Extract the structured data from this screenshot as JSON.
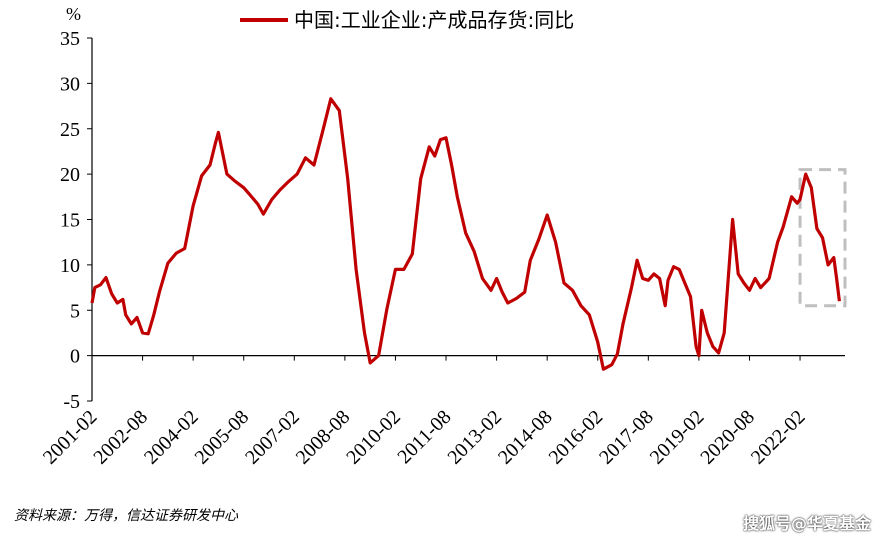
{
  "chart_data": {
    "type": "line",
    "ylabel_unit": "%",
    "ylim": [
      -5,
      35
    ],
    "yticks": [
      35,
      30,
      25,
      20,
      15,
      10,
      5,
      0,
      -5
    ],
    "xtick_labels": [
      "2001-02",
      "2002-08",
      "2004-02",
      "2005-08",
      "2007-02",
      "2008-08",
      "2010-02",
      "2011-08",
      "2013-02",
      "2014-08",
      "2016-02",
      "2017-08",
      "2019-02",
      "2020-08",
      "2022-02"
    ],
    "legend_position": "top",
    "series": [
      {
        "name": "中国:工业企业:产成品存货:同比",
        "color": "#c00000",
        "points": [
          [
            "2001-02",
            5.8
          ],
          [
            "2001-03",
            7.5
          ],
          [
            "2001-05",
            7.8
          ],
          [
            "2001-07",
            8.6
          ],
          [
            "2001-09",
            6.8
          ],
          [
            "2001-11",
            5.8
          ],
          [
            "2002-01",
            6.2
          ],
          [
            "2002-02",
            4.5
          ],
          [
            "2002-04",
            3.5
          ],
          [
            "2002-06",
            4.2
          ],
          [
            "2002-08",
            2.5
          ],
          [
            "2002-10",
            2.4
          ],
          [
            "2002-12",
            4.5
          ],
          [
            "2003-02",
            7.0
          ],
          [
            "2003-05",
            10.2
          ],
          [
            "2003-08",
            11.3
          ],
          [
            "2003-11",
            11.8
          ],
          [
            "2004-02",
            16.5
          ],
          [
            "2004-05",
            19.8
          ],
          [
            "2004-08",
            21.0
          ],
          [
            "2004-10",
            23.5
          ],
          [
            "2004-11",
            24.6
          ],
          [
            "2005-02",
            20.0
          ],
          [
            "2005-05",
            19.2
          ],
          [
            "2005-08",
            18.5
          ],
          [
            "2005-10",
            17.8
          ],
          [
            "2006-01",
            16.7
          ],
          [
            "2006-03",
            15.6
          ],
          [
            "2006-06",
            17.2
          ],
          [
            "2006-09",
            18.3
          ],
          [
            "2006-12",
            19.2
          ],
          [
            "2007-03",
            20.0
          ],
          [
            "2007-06",
            21.8
          ],
          [
            "2007-09",
            21.0
          ],
          [
            "2007-12",
            24.6
          ],
          [
            "2008-03",
            28.3
          ],
          [
            "2008-06",
            27.0
          ],
          [
            "2008-09",
            19.5
          ],
          [
            "2008-12",
            9.5
          ],
          [
            "2009-03",
            2.5
          ],
          [
            "2009-05",
            -0.8
          ],
          [
            "2009-08",
            0.0
          ],
          [
            "2009-11",
            5.2
          ],
          [
            "2010-02",
            9.5
          ],
          [
            "2010-05",
            9.5
          ],
          [
            "2010-08",
            11.2
          ],
          [
            "2010-11",
            19.5
          ],
          [
            "2011-02",
            23.0
          ],
          [
            "2011-04",
            22.0
          ],
          [
            "2011-06",
            23.8
          ],
          [
            "2011-08",
            24.0
          ],
          [
            "2011-10",
            21.0
          ],
          [
            "2011-12",
            17.5
          ],
          [
            "2012-03",
            13.5
          ],
          [
            "2012-06",
            11.5
          ],
          [
            "2012-09",
            8.5
          ],
          [
            "2012-12",
            7.2
          ],
          [
            "2013-02",
            8.5
          ],
          [
            "2013-04",
            7.0
          ],
          [
            "2013-06",
            5.8
          ],
          [
            "2013-09",
            6.3
          ],
          [
            "2013-12",
            7.0
          ],
          [
            "2014-02",
            10.5
          ],
          [
            "2014-05",
            12.8
          ],
          [
            "2014-08",
            15.5
          ],
          [
            "2014-11",
            12.5
          ],
          [
            "2015-02",
            8.0
          ],
          [
            "2015-05",
            7.2
          ],
          [
            "2015-08",
            5.5
          ],
          [
            "2015-11",
            4.5
          ],
          [
            "2016-02",
            1.5
          ],
          [
            "2016-04",
            -1.5
          ],
          [
            "2016-07",
            -1.0
          ],
          [
            "2016-09",
            0.2
          ],
          [
            "2016-11",
            3.5
          ],
          [
            "2017-02",
            7.5
          ],
          [
            "2017-04",
            10.5
          ],
          [
            "2017-06",
            8.5
          ],
          [
            "2017-08",
            8.3
          ],
          [
            "2017-10",
            9.0
          ],
          [
            "2017-12",
            8.5
          ],
          [
            "2018-02",
            5.5
          ],
          [
            "2018-03",
            8.3
          ],
          [
            "2018-05",
            9.8
          ],
          [
            "2018-07",
            9.5
          ],
          [
            "2018-09",
            8.0
          ],
          [
            "2018-11",
            6.5
          ],
          [
            "2019-01",
            1.0
          ],
          [
            "2019-02",
            0.0
          ],
          [
            "2019-03",
            5.0
          ],
          [
            "2019-05",
            2.5
          ],
          [
            "2019-07",
            1.0
          ],
          [
            "2019-09",
            0.3
          ],
          [
            "2019-11",
            2.5
          ],
          [
            "2020-02",
            15.0
          ],
          [
            "2020-04",
            9.0
          ],
          [
            "2020-06",
            8.0
          ],
          [
            "2020-08",
            7.2
          ],
          [
            "2020-10",
            8.5
          ],
          [
            "2020-12",
            7.5
          ],
          [
            "2021-03",
            8.5
          ],
          [
            "2021-06",
            12.5
          ],
          [
            "2021-08",
            14.2
          ],
          [
            "2021-11",
            17.5
          ],
          [
            "2022-01",
            16.8
          ],
          [
            "2022-02",
            17.2
          ],
          [
            "2022-04",
            20.0
          ],
          [
            "2022-06",
            18.5
          ],
          [
            "2022-08",
            14.0
          ],
          [
            "2022-10",
            13.0
          ],
          [
            "2022-12",
            10.0
          ],
          [
            "2023-02",
            10.8
          ],
          [
            "2023-03",
            8.5
          ],
          [
            "2023-04",
            6.0
          ]
        ]
      }
    ],
    "highlight_box": {
      "x_start": "2022-02",
      "x_end": "2023-06",
      "y_low": 5.5,
      "y_high": 20.5,
      "color": "#bfbfbf"
    }
  },
  "footer": {
    "source": "资料来源：万得，信达证券研发中心",
    "watermark": "搜狐号@华夏基金"
  }
}
